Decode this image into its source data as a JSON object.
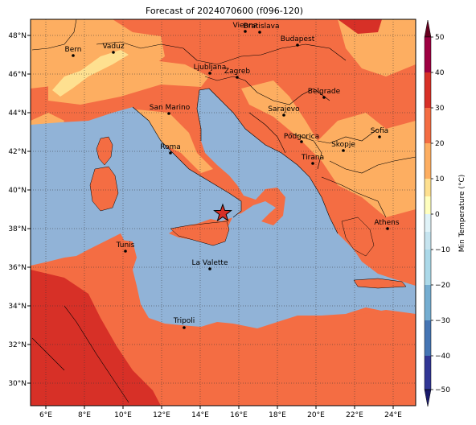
{
  "title": "Forecast of 2024070600 (f096-120)",
  "x_ticks": [
    "6°E",
    "8°E",
    "10°E",
    "12°E",
    "14°E",
    "16°E",
    "18°E",
    "20°E",
    "22°E",
    "24°E"
  ],
  "y_ticks": [
    "48°N",
    "46°N",
    "44°N",
    "42°N",
    "40°N",
    "38°N",
    "36°N",
    "34°N",
    "32°N",
    "30°N"
  ],
  "colorbar": {
    "label": "Min Temperature (°C)",
    "ticks": [
      "50",
      "40",
      "30",
      "20",
      "10",
      "0",
      "−10",
      "−20",
      "−30",
      "−40",
      "−50"
    ],
    "colors": [
      "#9e0142",
      "#d73027",
      "#f46d43",
      "#fdae61",
      "#fee090",
      "#ffffff",
      "#e0f3f8",
      "#abd9e9",
      "#74add1",
      "#4575b4",
      "#313695"
    ]
  },
  "colors": {
    "sea": "#91b3d7",
    "warm": "#f46d43",
    "hot": "#d73027",
    "mild": "#fdae61",
    "cool": "#fee090"
  },
  "marker": {
    "name": "forecast-location-star",
    "lon": 15.2,
    "lat": 38.8
  },
  "cities": [
    {
      "name": "Vienna",
      "label": "Vienna"
    },
    {
      "name": "Bratislava",
      "label": "Bratislava"
    },
    {
      "name": "Budapest",
      "label": "Budapest"
    },
    {
      "name": "Vaduz",
      "label": "Vaduz"
    },
    {
      "name": "Bern",
      "label": "Bern"
    },
    {
      "name": "Ljubljana",
      "label": "Ljubljana"
    },
    {
      "name": "Zagreb",
      "label": "Zagreb"
    },
    {
      "name": "Belgrade",
      "label": "Belgrade"
    },
    {
      "name": "San Marino",
      "label": "San Marino"
    },
    {
      "name": "Sarajevo",
      "label": "Sarajevo"
    },
    {
      "name": "Sofia",
      "label": "Sofia"
    },
    {
      "name": "Podgorica",
      "label": "Podgorica"
    },
    {
      "name": "Skopje",
      "label": "Skopje"
    },
    {
      "name": "Roma",
      "label": "Roma"
    },
    {
      "name": "Tirana",
      "label": "Tirana"
    },
    {
      "name": "Athens",
      "label": "Athens"
    },
    {
      "name": "Tunis",
      "label": "Tunis"
    },
    {
      "name": "La Valette",
      "label": "La Valette"
    },
    {
      "name": "Tripoli",
      "label": "Tripoli"
    }
  ]
}
